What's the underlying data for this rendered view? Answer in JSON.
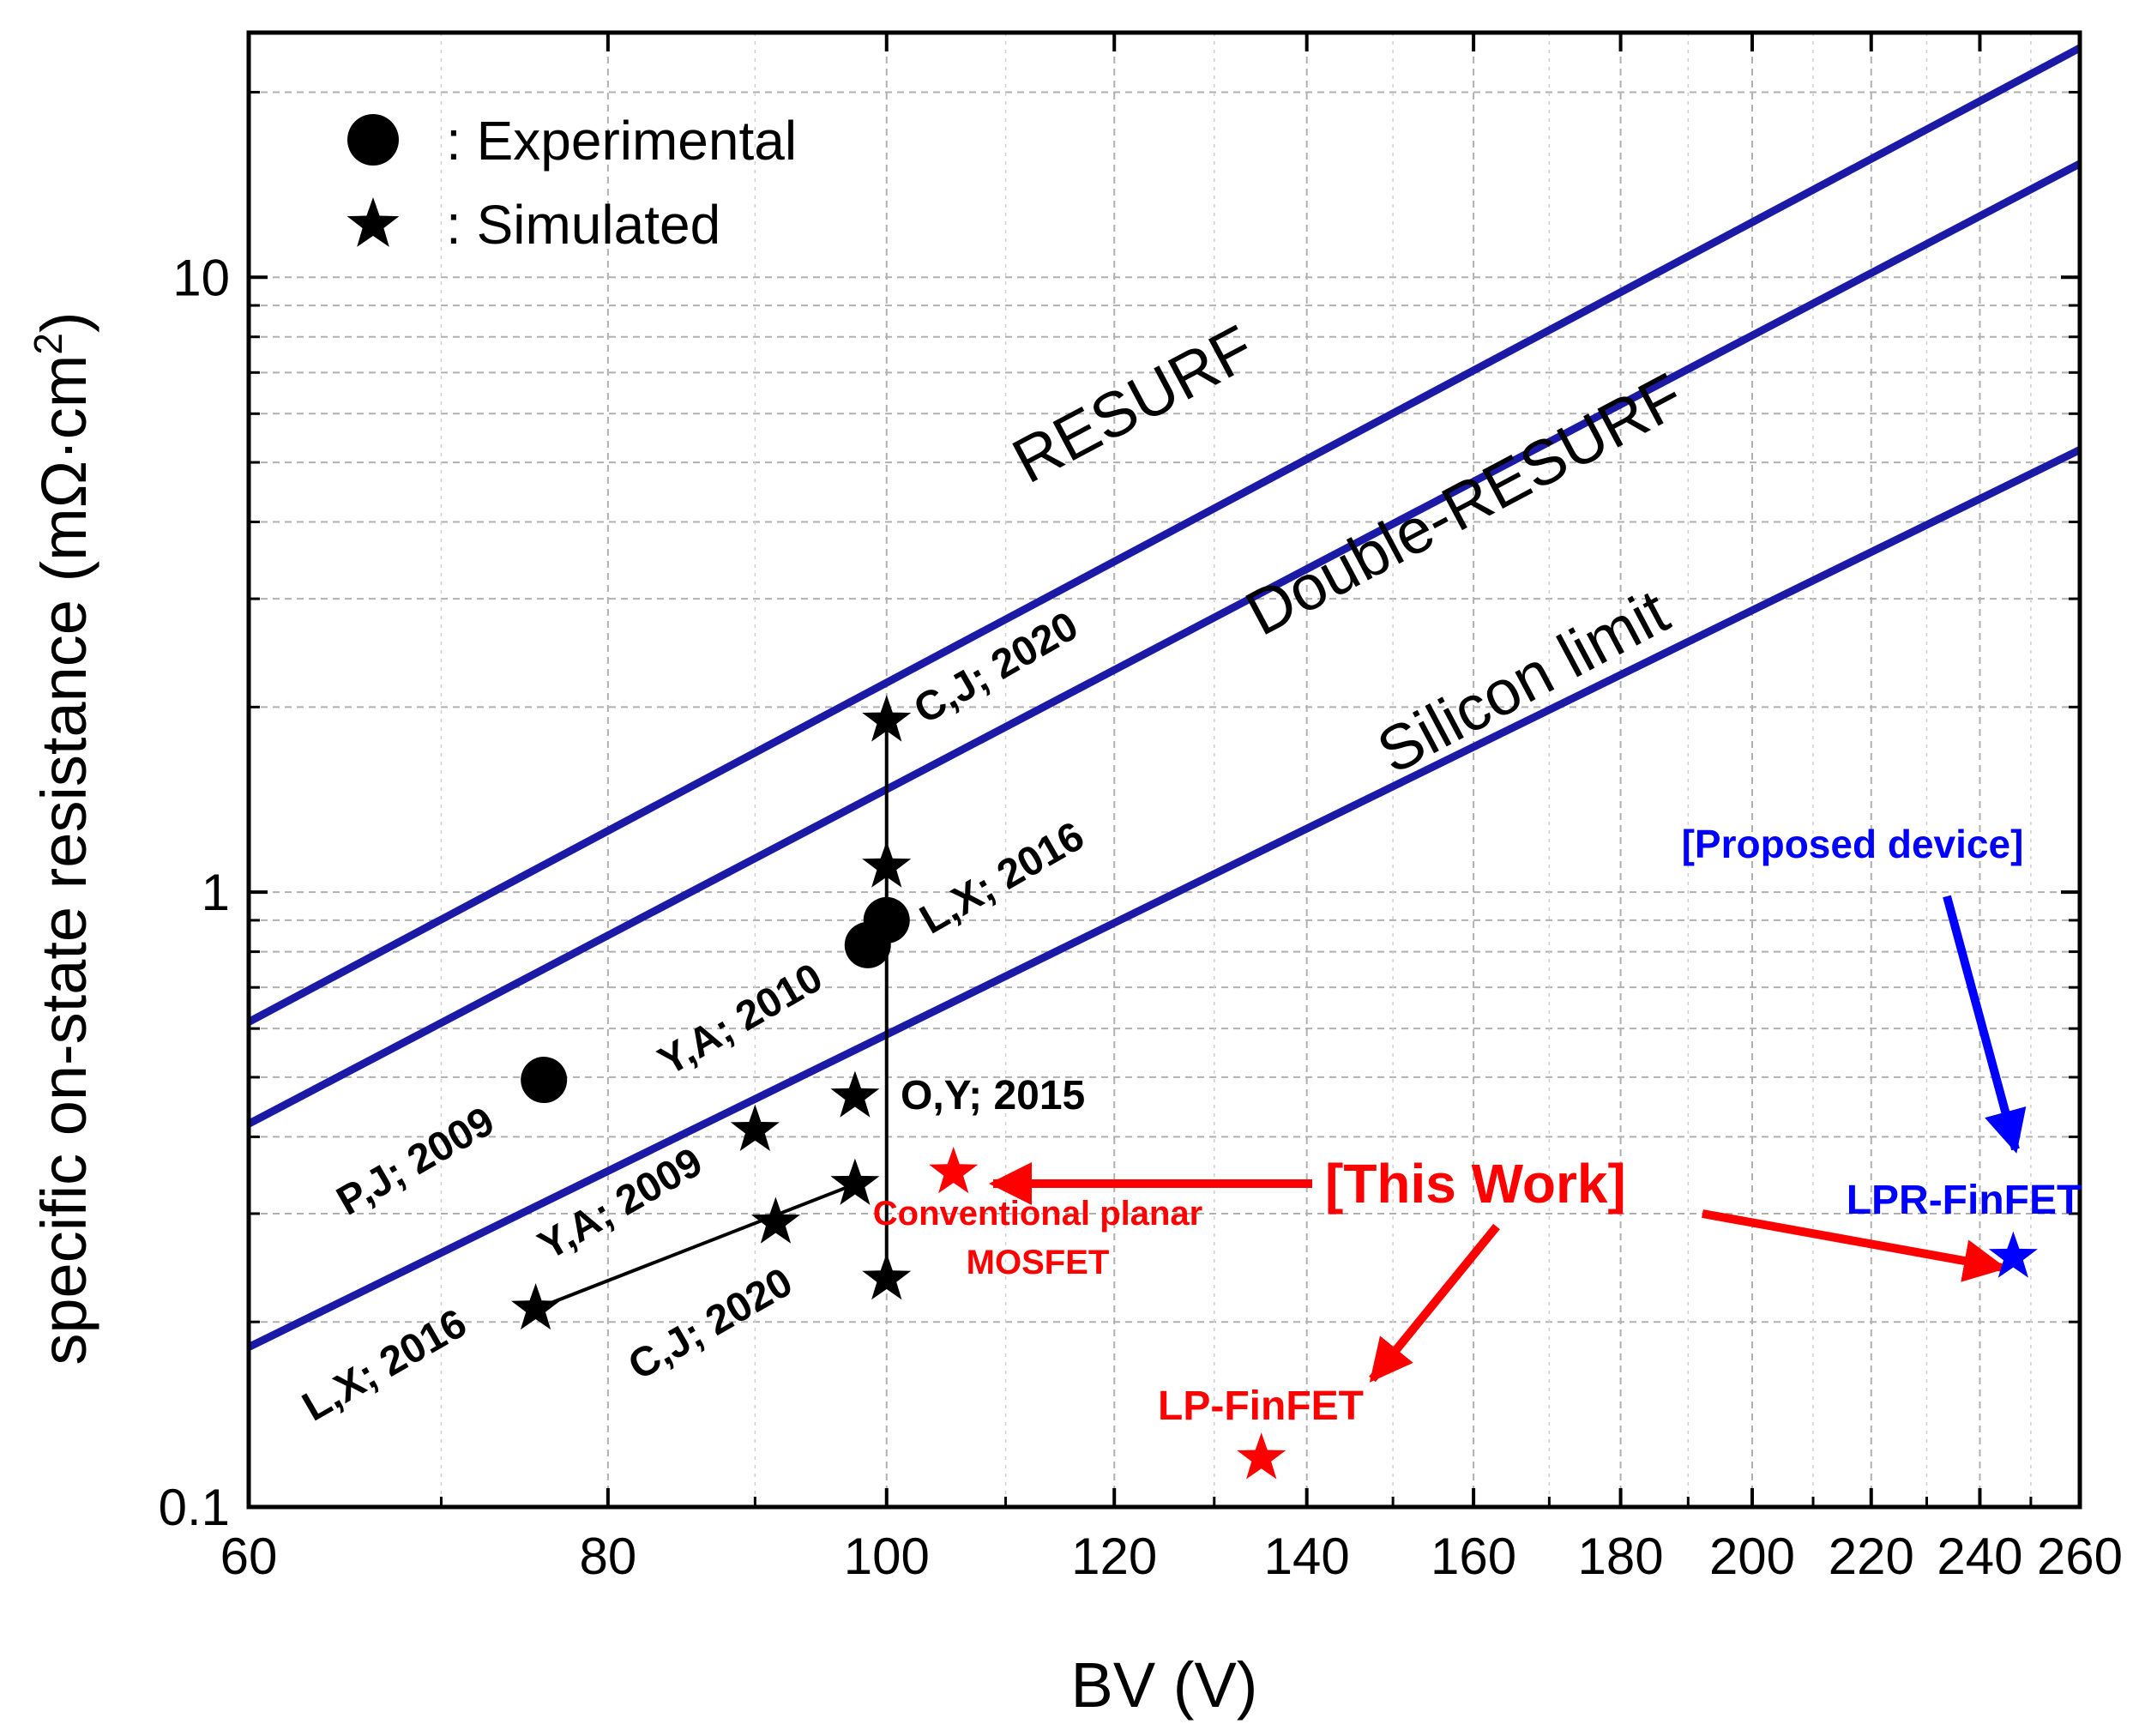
{
  "chart_data": {
    "type": "scatter",
    "x_scale": "log",
    "y_scale": "log",
    "xlabel": "BV (V)",
    "ylabel_main": "specific on-state resistance (mΩ·cm",
    "ylabel_sup": "2",
    "ylabel_end": ")",
    "xlim": [
      60,
      260
    ],
    "ylim": [
      0.1,
      25
    ],
    "x_ticks": [
      60,
      80,
      100,
      120,
      140,
      160,
      180,
      200,
      220,
      240,
      260
    ],
    "x_tick_labels": [
      "60",
      "80",
      "100",
      "120",
      "140",
      "160",
      "180",
      "200",
      "220",
      "240",
      "260"
    ],
    "y_ticks": [
      0.1,
      1,
      10
    ],
    "y_tick_labels": [
      "0.1",
      "1",
      "10"
    ],
    "grid": true,
    "limit_lines": [
      {
        "name": "RESURF",
        "color": "#1a1aa6",
        "points": [
          [
            60,
            0.615
          ],
          [
            260,
            23.6
          ]
        ]
      },
      {
        "name": "Double-RESURF",
        "color": "#1a1aa6",
        "points": [
          [
            60,
            0.42
          ],
          [
            260,
            15.3
          ]
        ]
      },
      {
        "name": "Silicon limit",
        "color": "#1a1aa6",
        "points": [
          [
            60,
            0.182
          ],
          [
            260,
            5.24
          ]
        ]
      }
    ],
    "limit_labels": [
      {
        "text": "RESURF",
        "x": 112,
        "y": 4.6
      },
      {
        "text": "Double-RESURF",
        "x": 135,
        "y": 2.6
      },
      {
        "text": "Silicon limit",
        "x": 150,
        "y": 1.55
      }
    ],
    "series": [
      {
        "name": "Experimental",
        "marker": "circle",
        "color": "#000000",
        "points": [
          {
            "x": 76,
            "y": 0.495,
            "label": "P,J; 2009"
          },
          {
            "x": 98.5,
            "y": 0.82,
            "label": "Y,A; 2010"
          },
          {
            "x": 100,
            "y": 0.9,
            "label": "L,X; 2016"
          }
        ]
      },
      {
        "name": "Simulated",
        "marker": "star",
        "color": "#000000",
        "points": [
          {
            "x": 100,
            "y": 1.9,
            "label": "C,J; 2020"
          },
          {
            "x": 100,
            "y": 1.1,
            "label": ""
          },
          {
            "x": 97.5,
            "y": 0.465,
            "label": "O,Y; 2015"
          },
          {
            "x": 90,
            "y": 0.41,
            "label": "Y,A; 2009"
          },
          {
            "x": 97.5,
            "y": 0.335,
            "label": ""
          },
          {
            "x": 91.5,
            "y": 0.29,
            "label": "C,J; 2020"
          },
          {
            "x": 100,
            "y": 0.235,
            "label": ""
          },
          {
            "x": 75.5,
            "y": 0.21,
            "label": "L,X; 2016"
          }
        ]
      },
      {
        "name": "This Work",
        "marker": "star",
        "color": "#ff0000",
        "points": [
          {
            "x": 105.5,
            "y": 0.35,
            "label": "Conventional planar MOSFET"
          },
          {
            "x": 135,
            "y": 0.12,
            "label": "LP-FinFET"
          }
        ]
      },
      {
        "name": "Proposed device",
        "marker": "star",
        "color": "#0000ff",
        "points": [
          {
            "x": 246.5,
            "y": 0.255,
            "label": "LPR-FinFET"
          }
        ]
      }
    ],
    "connectors": [
      {
        "from": [
          100,
          0.235
        ],
        "to": [
          100,
          1.9
        ]
      },
      {
        "from": [
          75.5,
          0.21
        ],
        "to": [
          97.5,
          0.335
        ]
      }
    ],
    "legend": [
      {
        "marker": "circle",
        "text": ": Experimental"
      },
      {
        "marker": "star",
        "text": ": Simulated"
      }
    ],
    "annotations": {
      "this_work": "[This Work]",
      "conventional_line1": "Conventional planar",
      "conventional_line2": "MOSFET",
      "lp_finfet": "LP-FinFET",
      "lpr_finfet": "LPR-FinFET",
      "proposed": "[Proposed device]"
    },
    "colors": {
      "limit": "#1a1aa6",
      "black": "#000000",
      "red": "#ff0000",
      "blue": "#0000ff",
      "grid": "#b0b0b0"
    }
  }
}
